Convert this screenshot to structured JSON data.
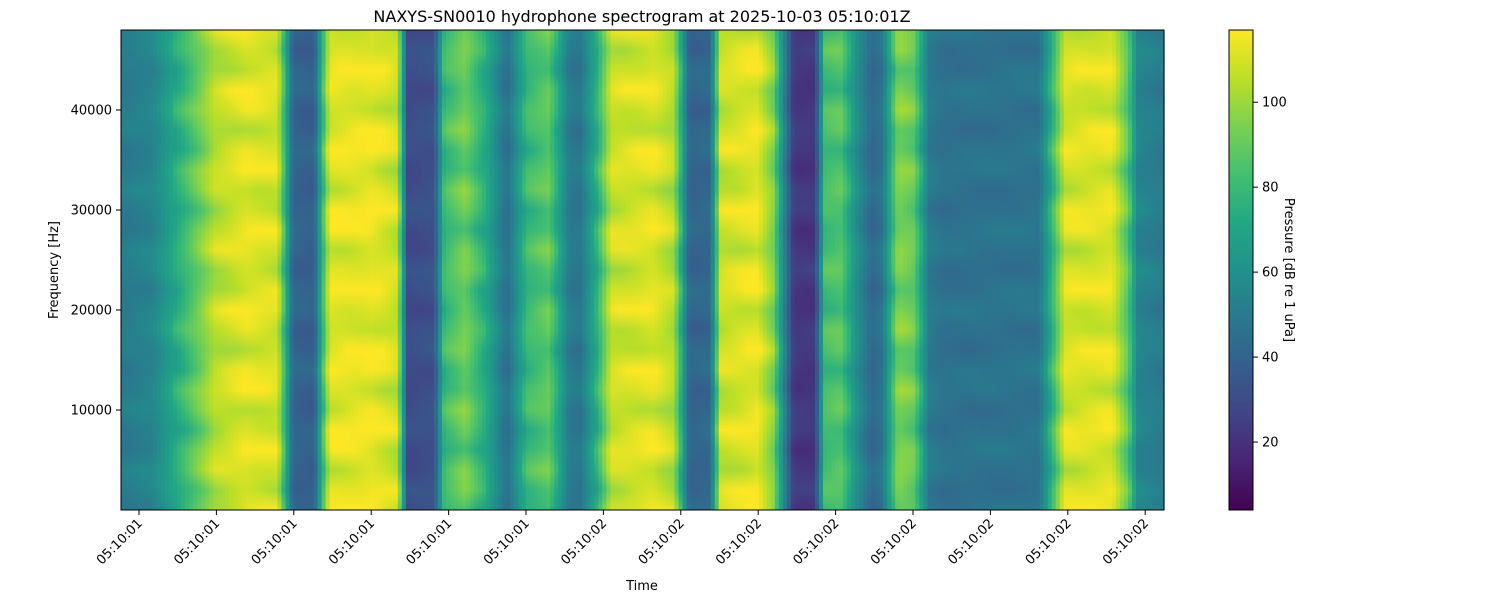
{
  "chart_data": {
    "type": "heatmap",
    "title": "NAXYS-SN0010 hydrophone spectrogram at 2025-10-03 05:10:01Z",
    "xlabel": "Time",
    "ylabel": "Frequency [Hz]",
    "colorbar_label": "Pressure [dB re 1 uPa]",
    "colormap": "viridis",
    "color_range": [
      4,
      117
    ],
    "ylim": [
      0,
      48000
    ],
    "y_ticks": [
      10000,
      20000,
      30000,
      40000
    ],
    "x_tick_labels": [
      "05:10:01",
      "05:10:01",
      "05:10:01",
      "05:10:01",
      "05:10:01",
      "05:10:01",
      "05:10:02",
      "05:10:02",
      "05:10:02",
      "05:10:02",
      "05:10:02",
      "05:10:02",
      "05:10:02",
      "05:10:02"
    ],
    "colorbar_ticks": [
      20,
      40,
      60,
      80,
      100
    ],
    "time_band_levels_db": [
      {
        "t": 0.0,
        "db": 50
      },
      {
        "t": 0.03,
        "db": 55
      },
      {
        "t": 0.05,
        "db": 70
      },
      {
        "t": 0.09,
        "db": 105
      },
      {
        "t": 0.12,
        "db": 112
      },
      {
        "t": 0.15,
        "db": 110
      },
      {
        "t": 0.165,
        "db": 40
      },
      {
        "t": 0.185,
        "db": 38
      },
      {
        "t": 0.2,
        "db": 112
      },
      {
        "t": 0.24,
        "db": 114
      },
      {
        "t": 0.265,
        "db": 108
      },
      {
        "t": 0.275,
        "db": 30
      },
      {
        "t": 0.3,
        "db": 32
      },
      {
        "t": 0.31,
        "db": 80
      },
      {
        "t": 0.33,
        "db": 92
      },
      {
        "t": 0.35,
        "db": 72
      },
      {
        "t": 0.37,
        "db": 45
      },
      {
        "t": 0.39,
        "db": 80
      },
      {
        "t": 0.41,
        "db": 88
      },
      {
        "t": 0.43,
        "db": 50
      },
      {
        "t": 0.44,
        "db": 48
      },
      {
        "t": 0.455,
        "db": 72
      },
      {
        "t": 0.47,
        "db": 108
      },
      {
        "t": 0.51,
        "db": 112
      },
      {
        "t": 0.53,
        "db": 104
      },
      {
        "t": 0.545,
        "db": 40
      },
      {
        "t": 0.565,
        "db": 42
      },
      {
        "t": 0.575,
        "db": 108
      },
      {
        "t": 0.61,
        "db": 113
      },
      {
        "t": 0.625,
        "db": 96
      },
      {
        "t": 0.635,
        "db": 58
      },
      {
        "t": 0.645,
        "db": 22
      },
      {
        "t": 0.665,
        "db": 22
      },
      {
        "t": 0.675,
        "db": 82
      },
      {
        "t": 0.69,
        "db": 86
      },
      {
        "t": 0.705,
        "db": 60
      },
      {
        "t": 0.72,
        "db": 42
      },
      {
        "t": 0.73,
        "db": 48
      },
      {
        "t": 0.745,
        "db": 95
      },
      {
        "t": 0.76,
        "db": 90
      },
      {
        "t": 0.775,
        "db": 50
      },
      {
        "t": 0.79,
        "db": 46
      },
      {
        "t": 0.88,
        "db": 47
      },
      {
        "t": 0.89,
        "db": 70
      },
      {
        "t": 0.905,
        "db": 110
      },
      {
        "t": 0.95,
        "db": 112
      },
      {
        "t": 0.965,
        "db": 88
      },
      {
        "t": 0.975,
        "db": 55
      },
      {
        "t": 1.0,
        "db": 50
      }
    ]
  }
}
